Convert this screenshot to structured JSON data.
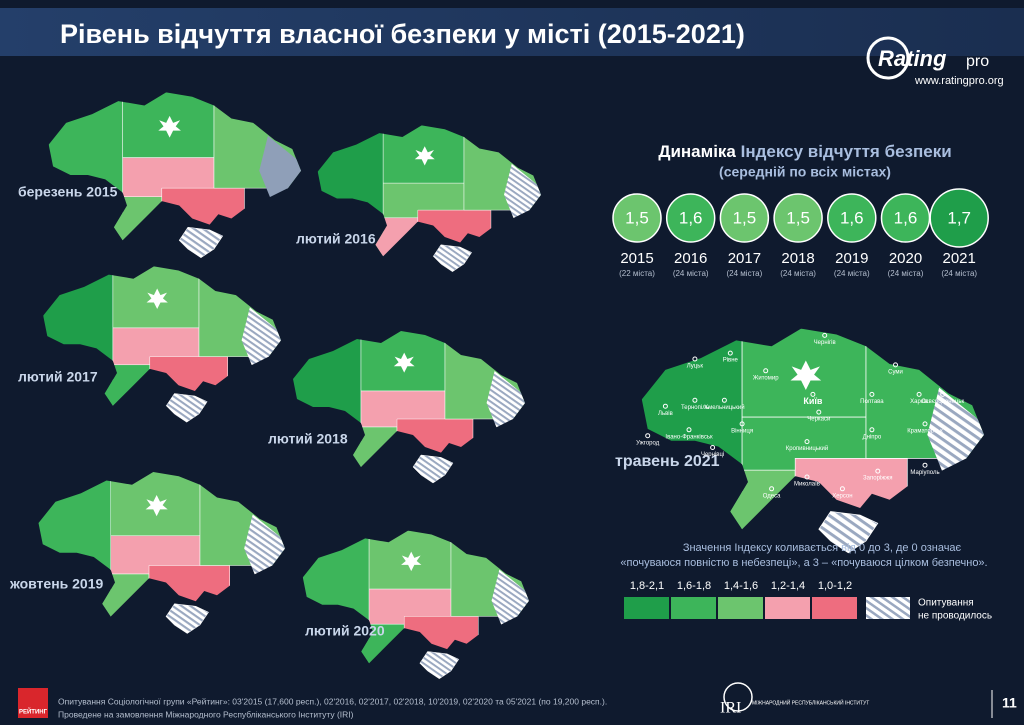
{
  "header": {
    "title": "Рівень відчуття власної безпеки у місті (2015-2021)"
  },
  "logo": {
    "brand": "Rating",
    "suffix": "pro",
    "url": "www.ratingpro.org"
  },
  "dynamics": {
    "title_bold": "Динаміка",
    "title_rest": "Індексу відчуття безпеки",
    "subtitle": "(середній по всіх містах)",
    "items": [
      {
        "value": "1,5",
        "year": "2015",
        "note": "(22 міста)"
      },
      {
        "value": "1,6",
        "year": "2016",
        "note": "(24 міста)"
      },
      {
        "value": "1,5",
        "year": "2017",
        "note": "(24 міста)"
      },
      {
        "value": "1,5",
        "year": "2018",
        "note": "(24 міста)"
      },
      {
        "value": "1,6",
        "year": "2019",
        "note": "(24 міста)"
      },
      {
        "value": "1,6",
        "year": "2020",
        "note": "(24 міста)"
      },
      {
        "value": "1,7",
        "year": "2021",
        "note": "(24 міста)"
      }
    ]
  },
  "maps": [
    {
      "label": "березень 2015"
    },
    {
      "label": "лютий 2016"
    },
    {
      "label": "лютий 2017"
    },
    {
      "label": "лютий 2018"
    },
    {
      "label": "жовтень 2019"
    },
    {
      "label": "лютий 2020"
    },
    {
      "label": "травень 2021"
    }
  ],
  "cities": [
    "Луцьк",
    "Рівне",
    "Житомир",
    "Київ",
    "Чернігів",
    "Суми",
    "Харків",
    "Полтава",
    "Львів",
    "Тернопіль",
    "Хмельницький",
    "Вінниця",
    "Ужгород",
    "Івано-Франківськ",
    "Чернівці",
    "Черкаси",
    "Кропивницький",
    "Дніпро",
    "Сєвєродонецьк",
    "Краматорськ",
    "Запоріжжя",
    "Маріуполь",
    "Миколаїв",
    "Херсон",
    "Одеса"
  ],
  "legend": {
    "note_line1": "Значення Індексу коливається від 0 до 3, де 0 означає",
    "note_line2": "«почуваюся повністю в небезпеці», а 3 – «почуваюся цілком безпечно».",
    "items": [
      {
        "label": "1,8-2,1",
        "color": "#1f9e4a"
      },
      {
        "label": "1,6-1,8",
        "color": "#3db55a"
      },
      {
        "label": "1,4-1,6",
        "color": "#6cc56e"
      },
      {
        "label": "1,2-1,4",
        "color": "#f4a0ae"
      },
      {
        "label": "1,0-1,2",
        "color": "#ee6d7f"
      }
    ],
    "no_survey_line1": "Опитування",
    "no_survey_line2": "не проводилось",
    "no_survey_color": "#8f9fb8"
  },
  "footer": {
    "source_line1": "Опитування Соціологічної групи «Рейтинг»: 03'2015 (17,600 респ.), 02'2016, 02'2017, 02'2018, 10'2019, 02'2020 та 05'2021 (по 19,200 респ.).",
    "source_line2": "Проведене на замовлення Міжнародного Республіканського Інституту (IRI)",
    "badge": "РЕЙТИНГ",
    "iri": "IRI",
    "iri_text": "МІЖНАРОДНИЙ РЕСПУБЛІКАНСЬКИЙ ІНСТИТУТ",
    "page": "11"
  }
}
